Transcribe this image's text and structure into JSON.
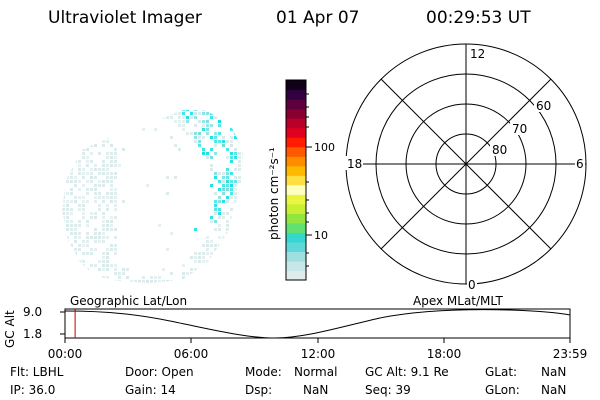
{
  "header": {
    "instrument": "Ultraviolet Imager",
    "date": "01 Apr 07",
    "time": "00:29:53 UT"
  },
  "colorbar": {
    "unit_label": "photon cm⁻²s⁻¹",
    "tick_labels": [
      "100",
      "10"
    ],
    "scale": "log",
    "colors": [
      "#e0ecec",
      "#c6e6e8",
      "#9fdfe0",
      "#5fd8da",
      "#35d8cf",
      "#62e070",
      "#93e63f",
      "#c8ef30",
      "#e9f541",
      "#ffffc0",
      "#ffe040",
      "#ffb800",
      "#ff8c00",
      "#ff5a00",
      "#ff1a00",
      "#e00020",
      "#b8002a",
      "#880030",
      "#5c0040",
      "#300040",
      "#100018"
    ]
  },
  "polar_plot": {
    "mlt_labels": {
      "top": "12",
      "left": "18",
      "right": "6",
      "bottom": "0"
    },
    "lat_labels": [
      "60",
      "70",
      "80"
    ]
  },
  "timeline": {
    "y_axis_label": "GC Alt",
    "y_ticks": [
      "9.0",
      "1.8"
    ],
    "left_title": "Geographic Lat/Lon",
    "right_title": "Apex MLat/MLT",
    "x_ticks": [
      "00:00",
      "06:00",
      "12:00",
      "18:00",
      "23:59"
    ],
    "current_time_fraction": 0.02
  },
  "info": {
    "flt": "Flt: LBHL",
    "ip": "IP: 36.0",
    "door": "Door: Open",
    "gain": "Gain: 14",
    "mode_label": "Mode:",
    "mode_value": "Normal",
    "dsp_label": "Dsp:",
    "dsp_value": "NaN",
    "gc_alt": "GC Alt: 9.1 Re",
    "seq": "Seq: 39",
    "glat_label": "GLat:",
    "glat_value": "NaN",
    "glon_label": "GLon:",
    "glon_value": "NaN"
  },
  "accent_colors": {
    "current_time_marker": "#c00000",
    "auroral_dim": "#d4e6e6",
    "auroral_mid": "#6fdcdc",
    "auroral_bright": "#18e0e0"
  }
}
